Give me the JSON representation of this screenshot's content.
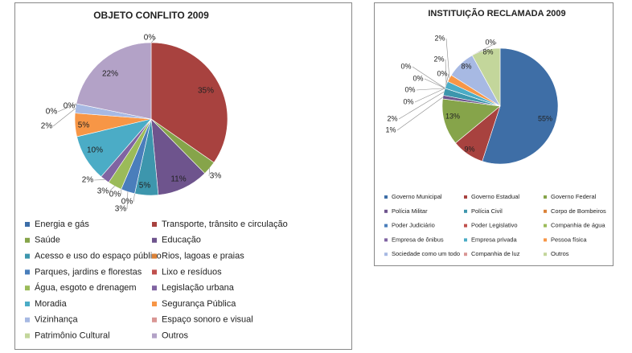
{
  "chart_data": [
    {
      "type": "pie",
      "title": "OBJETO CONFLITO 2009",
      "categories": [
        "Energia e gás",
        "Transporte, trânsito e circulação",
        "Saúde",
        "Educação",
        "Acesso e uso do espaço público",
        "Rios, lagoas e praias",
        "Parques, jardins e florestas",
        "Lixo e resíduos",
        "Água, esgoto e drenagem",
        "Legislação urbana",
        "Moradia",
        "Segurança Pública",
        "Vizinhança",
        "Espaço sonoro e visual",
        "Patrimônio Cultural",
        "Outros"
      ],
      "values": [
        0,
        35,
        3,
        11,
        5,
        0,
        3,
        0,
        3,
        2,
        10,
        5,
        2,
        0,
        0,
        22
      ],
      "colors": [
        "#3d6ea8",
        "#a8423f",
        "#86a44a",
        "#6e548d",
        "#3d96ad",
        "#da8137",
        "#4a7ebb",
        "#c0504d",
        "#9bbb59",
        "#8064a2",
        "#4bacc6",
        "#f79646",
        "#a7b9e3",
        "#d99694",
        "#c3d69b",
        "#b3a2c7"
      ]
    },
    {
      "type": "pie",
      "title": "INSTITUIÇÃO  RECLAMADA 2009",
      "categories": [
        "Governo Municipal",
        "Governo Estadual",
        "Governo Federal",
        "Polícia Militar",
        "Polícia Civil",
        "Corpo de Bombeiros",
        "Poder Judiciário",
        "Poder Legislativo",
        "Companhia de água",
        "Empresa de ônibus",
        "Empresa privada",
        "Pessoa física",
        "Sociedade como um todo",
        "Companhia de luz",
        "Outros"
      ],
      "values": [
        55,
        9,
        13,
        1,
        2,
        0,
        0,
        0,
        0,
        0,
        2,
        2,
        8,
        0,
        8
      ],
      "colors": [
        "#3e6ea6",
        "#a8423f",
        "#86a44a",
        "#6e548d",
        "#3d96ad",
        "#da8137",
        "#4a7ebb",
        "#c0504d",
        "#9bbb59",
        "#8064a2",
        "#4bacc6",
        "#f79646",
        "#a7b9e3",
        "#d99694",
        "#c3d69b"
      ]
    }
  ]
}
